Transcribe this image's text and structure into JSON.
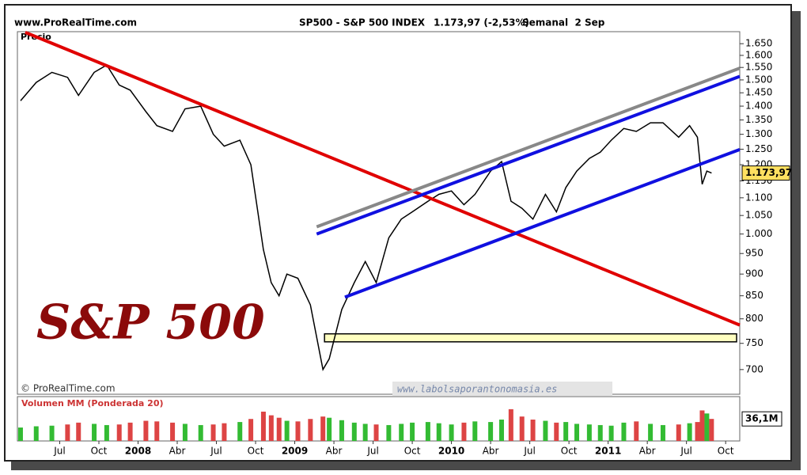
{
  "chart_data": {
    "type": "line",
    "header": {
      "site": "www.ProRealTime.com",
      "instrument": "SP500 - S&P 500 INDEX",
      "quote": "1.173,97 (-2,53%)",
      "period": "Semanal  2 Sep"
    },
    "price_label": "Precio",
    "chart_title": "S&P 500",
    "copyright": "© ProRealTime.com",
    "watermark": "www.labolsaporantonomasia.es",
    "volume_label": "Volumen MM (Ponderada 20)",
    "x": [
      2007.25,
      2007.35,
      2007.45,
      2007.55,
      2007.62,
      2007.72,
      2007.8,
      2007.88,
      2007.95,
      2008.05,
      2008.12,
      2008.22,
      2008.3,
      2008.4,
      2008.48,
      2008.55,
      2008.65,
      2008.72,
      2008.8,
      2008.85,
      2008.9,
      2008.95,
      2009.02,
      2009.1,
      2009.18,
      2009.22,
      2009.3,
      2009.38,
      2009.45,
      2009.52,
      2009.6,
      2009.68,
      2009.75,
      2009.85,
      2009.92,
      2010.0,
      2010.08,
      2010.15,
      2010.25,
      2010.32,
      2010.38,
      2010.45,
      2010.52,
      2010.6,
      2010.67,
      2010.73,
      2010.8,
      2010.88,
      2010.95,
      2011.02,
      2011.1,
      2011.18,
      2011.27,
      2011.35,
      2011.45,
      2011.52,
      2011.57,
      2011.6,
      2011.63,
      2011.66
    ],
    "price": {
      "color": "#000000",
      "values": [
        1420,
        1490,
        1530,
        1510,
        1440,
        1530,
        1560,
        1480,
        1460,
        1380,
        1330,
        1310,
        1390,
        1400,
        1300,
        1260,
        1280,
        1200,
        960,
        880,
        850,
        900,
        890,
        830,
        700,
        720,
        820,
        880,
        930,
        880,
        990,
        1040,
        1060,
        1090,
        1110,
        1120,
        1080,
        1110,
        1180,
        1210,
        1090,
        1070,
        1040,
        1110,
        1060,
        1130,
        1180,
        1220,
        1240,
        1280,
        1320,
        1310,
        1340,
        1340,
        1290,
        1330,
        1290,
        1140,
        1180,
        1173.97
      ]
    },
    "volume": {
      "up_color": "#33bb33",
      "down_color": "#dd4444",
      "ylim": [
        0,
        70
      ],
      "values": [
        22,
        24,
        25,
        27,
        30,
        28,
        26,
        27,
        30,
        33,
        32,
        30,
        28,
        26,
        27,
        29,
        31,
        36,
        48,
        42,
        38,
        33,
        32,
        36,
        40,
        38,
        34,
        30,
        28,
        27,
        26,
        28,
        30,
        31,
        29,
        27,
        30,
        32,
        31,
        35,
        52,
        40,
        35,
        33,
        30,
        31,
        28,
        27,
        26,
        25,
        30,
        32,
        28,
        26,
        27,
        29,
        31,
        50,
        45,
        36.1
      ]
    },
    "price_tag": {
      "value": 1173.97,
      "label": "1.173,97"
    },
    "volume_tag": {
      "value": 36.1,
      "label": "36,1M"
    },
    "log_scale": true,
    "grid": false,
    "xlim": [
      2007.23,
      2011.84
    ],
    "xticks": [
      {
        "value": 2007.5,
        "label": "Jul"
      },
      {
        "value": 2007.75,
        "label": "Oct"
      },
      2008,
      {
        "value": 2008.25,
        "label": "Abr"
      },
      {
        "value": 2008.5,
        "label": "Jul"
      },
      {
        "value": 2008.75,
        "label": "Oct"
      },
      2009,
      {
        "value": 2009.25,
        "label": "Abr"
      },
      {
        "value": 2009.5,
        "label": "Jul"
      },
      {
        "value": 2009.75,
        "label": "Oct"
      },
      2010,
      {
        "value": 2010.25,
        "label": "Abr"
      },
      {
        "value": 2010.5,
        "label": "Jul"
      },
      {
        "value": 2010.75,
        "label": "Oct"
      },
      2011,
      {
        "value": 2011.25,
        "label": "Abr"
      },
      {
        "value": 2011.5,
        "label": "Jul"
      },
      {
        "value": 2011.75,
        "label": "Oct"
      }
    ],
    "ylim": [
      656,
      1703
    ],
    "yticks": [
      700,
      750,
      800,
      850,
      900,
      950,
      {
        "value": 1000,
        "label": "1.000"
      },
      {
        "value": 1050,
        "label": "1.050"
      },
      {
        "value": 1100,
        "label": "1.100"
      },
      {
        "value": 1150,
        "label": "1.150"
      },
      {
        "value": 1200,
        "label": "1.200"
      },
      {
        "value": 1250,
        "label": "1.250"
      },
      {
        "value": 1300,
        "label": "1.300"
      },
      {
        "value": 1350,
        "label": "1.350"
      },
      {
        "value": 1400,
        "label": "1.400"
      },
      {
        "value": 1450,
        "label": "1.450"
      },
      {
        "value": 1500,
        "label": "1.500"
      },
      {
        "value": 1550,
        "label": "1.550"
      },
      {
        "value": 1600,
        "label": "1.600"
      },
      {
        "value": 1650,
        "label": "1.650"
      }
    ],
    "trend_lines": [
      {
        "color": "#e00000",
        "x": [
          2007.28,
          2011.84
        ],
        "y": [
          1700,
          787
        ]
      },
      {
        "color": "#888888",
        "x": [
          2009.14,
          2011.84
        ],
        "y": [
          1019,
          1547
        ]
      },
      {
        "color": "#1010e0",
        "x": [
          2009.14,
          2011.84
        ],
        "y": [
          1000,
          1514
        ]
      },
      {
        "color": "#1010e0",
        "x": [
          2009.32,
          2011.84
        ],
        "y": [
          847,
          1249
        ]
      }
    ],
    "support_zone": {
      "color": "#ffffc0",
      "x": [
        2009.19,
        2011.82
      ],
      "y": [
        753,
        769
      ]
    }
  }
}
